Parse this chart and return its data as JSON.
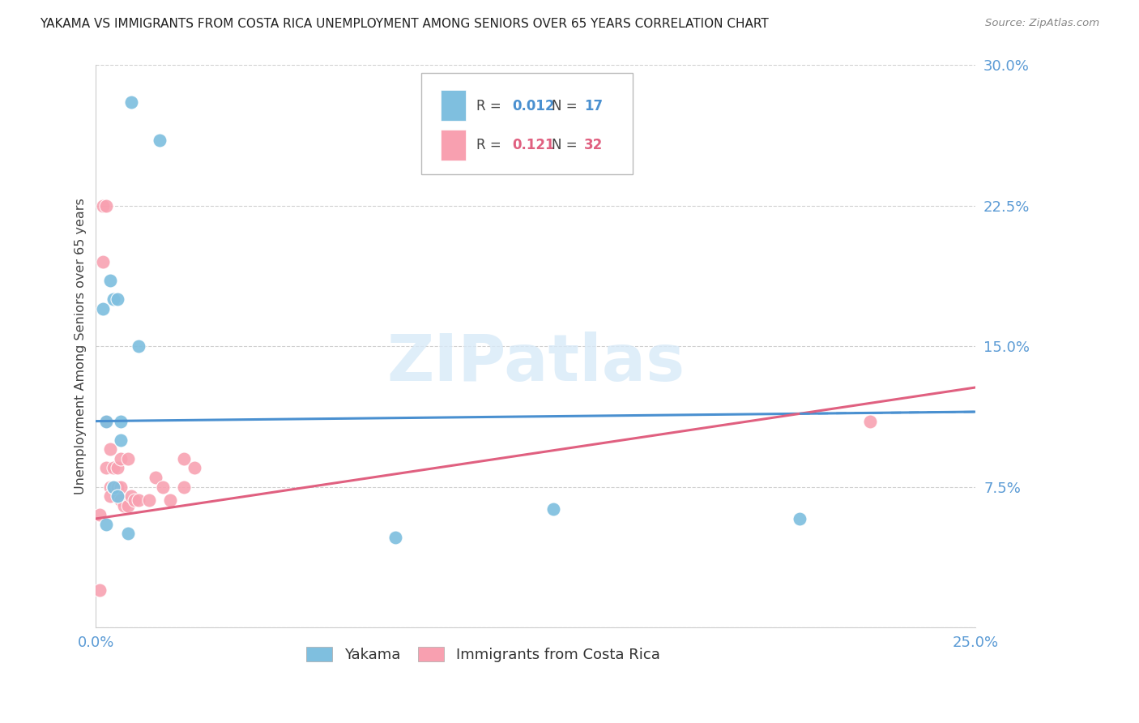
{
  "title": "YAKAMA VS IMMIGRANTS FROM COSTA RICA UNEMPLOYMENT AMONG SENIORS OVER 65 YEARS CORRELATION CHART",
  "source": "Source: ZipAtlas.com",
  "ylabel": "Unemployment Among Seniors over 65 years",
  "xlim": [
    0.0,
    0.25
  ],
  "ylim": [
    0.0,
    0.3
  ],
  "yticks": [
    0.0,
    0.075,
    0.15,
    0.225,
    0.3
  ],
  "ytick_labels": [
    "",
    "7.5%",
    "15.0%",
    "22.5%",
    "30.0%"
  ],
  "xticks": [
    0.0,
    0.05,
    0.1,
    0.15,
    0.2,
    0.25
  ],
  "xtick_labels": [
    "0.0%",
    "",
    "",
    "",
    "",
    "25.0%"
  ],
  "yakama_color": "#7fbfdf",
  "cr_color": "#f8a0b0",
  "trend_blue": "#4a90d0",
  "trend_pink": "#e06080",
  "background_color": "#ffffff",
  "grid_color": "#d0d0d0",
  "title_color": "#222222",
  "axis_label_color": "#444444",
  "tick_label_color": "#5b9bd5",
  "source_color": "#888888",
  "watermark_color": "#d8eaf8",
  "legend_box_color": "#e8e8e8",
  "blue_trend_intercept": 0.11,
  "blue_trend_slope": 0.02,
  "pink_trend_intercept": 0.058,
  "pink_trend_slope": 0.28,
  "yakama_x": [
    0.01,
    0.018,
    0.002,
    0.004,
    0.005,
    0.006,
    0.007,
    0.007,
    0.003,
    0.012,
    0.13,
    0.2,
    0.005,
    0.003,
    0.006,
    0.009,
    0.085
  ],
  "yakama_y": [
    0.28,
    0.26,
    0.17,
    0.185,
    0.175,
    0.175,
    0.11,
    0.1,
    0.11,
    0.15,
    0.063,
    0.058,
    0.075,
    0.055,
    0.07,
    0.05,
    0.048
  ],
  "cr_x": [
    0.001,
    0.002,
    0.002,
    0.003,
    0.003,
    0.004,
    0.004,
    0.004,
    0.005,
    0.005,
    0.005,
    0.006,
    0.006,
    0.007,
    0.007,
    0.007,
    0.008,
    0.009,
    0.009,
    0.01,
    0.011,
    0.012,
    0.015,
    0.017,
    0.019,
    0.021,
    0.025,
    0.025,
    0.028,
    0.22,
    0.001,
    0.003
  ],
  "cr_y": [
    0.06,
    0.225,
    0.195,
    0.225,
    0.085,
    0.095,
    0.075,
    0.07,
    0.085,
    0.075,
    0.075,
    0.085,
    0.075,
    0.09,
    0.075,
    0.068,
    0.065,
    0.09,
    0.065,
    0.07,
    0.068,
    0.068,
    0.068,
    0.08,
    0.075,
    0.068,
    0.09,
    0.075,
    0.085,
    0.11,
    0.02,
    0.11
  ]
}
